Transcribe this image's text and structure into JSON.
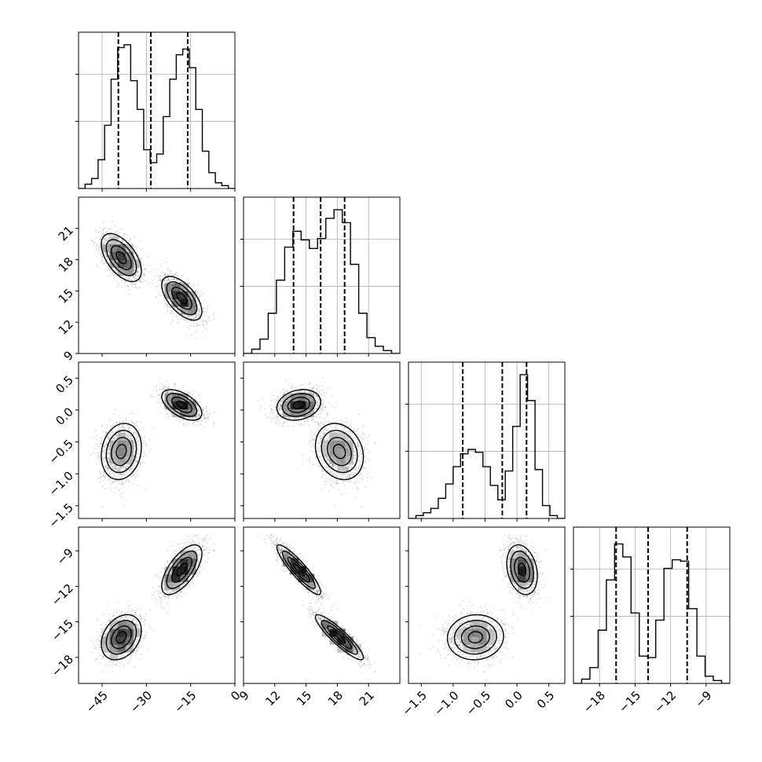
{
  "chart_data": {
    "type": "corner",
    "title": "",
    "grid": true,
    "params": [
      {
        "range": [
          -53,
          0
        ],
        "ticks": [
          -45,
          -30,
          -15,
          0
        ],
        "tick_labels": [
          "−45",
          "−30",
          "−15",
          "0"
        ],
        "quantiles": [
          -39.5,
          -28.5,
          -16.0
        ]
      },
      {
        "range": [
          9,
          24
        ],
        "ticks": [
          9,
          12,
          15,
          18,
          21
        ],
        "tick_labels": [
          "9",
          "12",
          "15",
          "18",
          "21"
        ],
        "quantiles": [
          13.8,
          16.4,
          18.7
        ]
      },
      {
        "range": [
          -1.7,
          0.75
        ],
        "ticks": [
          -1.5,
          -1.0,
          -0.5,
          0.0,
          0.5
        ],
        "tick_labels": [
          "−1.5",
          "−1.0",
          "−0.5",
          "0.0",
          "0.5"
        ],
        "quantiles": [
          -0.85,
          -0.23,
          0.15
        ]
      },
      {
        "range": [
          -20.2,
          -7.0
        ],
        "ticks": [
          -18,
          -15,
          -12,
          -9
        ],
        "tick_labels": [
          "−18",
          "−15",
          "−12",
          "−9"
        ],
        "quantiles": [
          -16.6,
          -13.9,
          -10.6
        ]
      }
    ],
    "histograms": [
      {
        "counts": [
          0.0,
          0.03,
          0.07,
          0.2,
          0.44,
          0.76,
          0.98,
          1.0,
          0.75,
          0.55,
          0.27,
          0.18,
          0.24,
          0.5,
          0.76,
          0.93,
          0.97,
          0.84,
          0.55,
          0.26,
          0.11,
          0.04,
          0.02,
          0.0
        ]
      },
      {
        "counts": [
          0.0,
          0.03,
          0.1,
          0.28,
          0.51,
          0.74,
          0.85,
          0.79,
          0.73,
          0.8,
          0.94,
          1.0,
          0.91,
          0.62,
          0.28,
          0.11,
          0.05,
          0.02,
          0.0
        ]
      },
      {
        "counts": [
          0.0,
          0.02,
          0.04,
          0.07,
          0.14,
          0.24,
          0.36,
          0.45,
          0.48,
          0.46,
          0.36,
          0.23,
          0.13,
          0.33,
          0.64,
          1.0,
          0.82,
          0.34,
          0.09,
          0.02,
          0.0
        ]
      },
      {
        "counts": [
          0.0,
          0.03,
          0.11,
          0.37,
          0.72,
          0.97,
          0.88,
          0.49,
          0.19,
          0.18,
          0.44,
          0.8,
          0.86,
          0.85,
          0.52,
          0.19,
          0.05,
          0.02,
          0.0
        ]
      }
    ],
    "modes": [
      {
        "center": [
          -38.5,
          18.2,
          -0.65,
          -16.3
        ]
      },
      {
        "center": [
          -18.0,
          14.3,
          0.08,
          -10.6
        ]
      }
    ]
  }
}
